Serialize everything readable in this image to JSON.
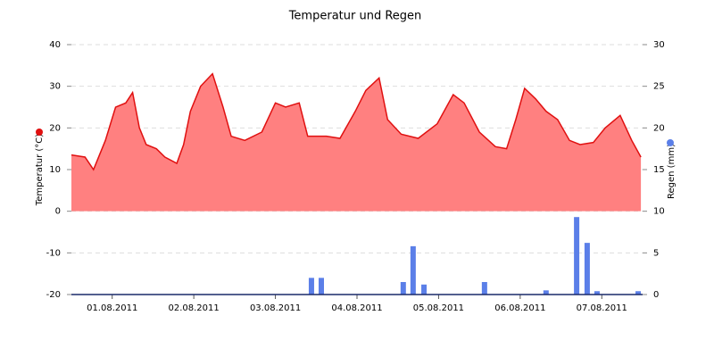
{
  "chart_data": {
    "type": "combo",
    "title": "Temperatur und Regen",
    "xlim": [
      0,
      168
    ],
    "xticks": [
      {
        "value": 12,
        "label": "01.08.2011"
      },
      {
        "value": 36,
        "label": "02.08.2011"
      },
      {
        "value": 60,
        "label": "03.08.2011"
      },
      {
        "value": 84,
        "label": "04.08.2011"
      },
      {
        "value": 108,
        "label": "05.08.2011"
      },
      {
        "value": 132,
        "label": "06.08.2011"
      },
      {
        "value": 156,
        "label": "07.08.2011"
      }
    ],
    "ylim": [
      -20,
      40
    ],
    "yticks": [
      -20,
      -10,
      0,
      10,
      20,
      30,
      40
    ],
    "y2lim": [
      0,
      30
    ],
    "y2ticks": [
      0,
      5,
      10,
      15,
      20,
      25,
      30
    ],
    "grid": true,
    "series": [
      {
        "name": "Temperatur (°C)",
        "type": "area",
        "axis": "y",
        "color": "#e01010",
        "fill": "#ff8080",
        "x": [
          0,
          4,
          6.5,
          10,
          13,
          16,
          18,
          20,
          22,
          25,
          27.5,
          31,
          33,
          35,
          38,
          41.5,
          44.6,
          47,
          51,
          56,
          60,
          63,
          67,
          69.5,
          75,
          79,
          83.5,
          86.6,
          90.5,
          93,
          97,
          102,
          107.6,
          112.3,
          115.5,
          120,
          124.7,
          128,
          130.7,
          133.3,
          136.5,
          139.6,
          143,
          146.5,
          149.6,
          153.5,
          157,
          161.4,
          164.8,
          167.5
        ],
        "values": [
          13.5,
          13,
          10,
          17,
          25,
          26,
          28.5,
          20,
          16,
          15,
          13,
          11.5,
          16,
          24,
          30,
          33,
          25,
          18,
          17,
          19,
          26,
          25,
          26,
          18,
          18,
          17.5,
          24,
          29,
          32,
          22,
          18.5,
          17.5,
          21,
          28,
          26,
          19,
          15.5,
          15,
          22,
          29.5,
          27,
          24,
          22,
          17,
          16,
          16.5,
          20,
          23,
          17,
          13
        ]
      },
      {
        "name": "Regen (mm)",
        "type": "bar",
        "axis": "y2",
        "color": "#5b7fe8",
        "x": [
          70.6,
          73.5,
          97.6,
          100.5,
          103.7,
          121.5,
          139.6,
          148.6,
          151.7,
          154.6,
          166.7
        ],
        "values": [
          2,
          2,
          1.5,
          5.8,
          1.2,
          1.5,
          0.5,
          9.3,
          6.2,
          0.4,
          0.4
        ]
      }
    ]
  }
}
